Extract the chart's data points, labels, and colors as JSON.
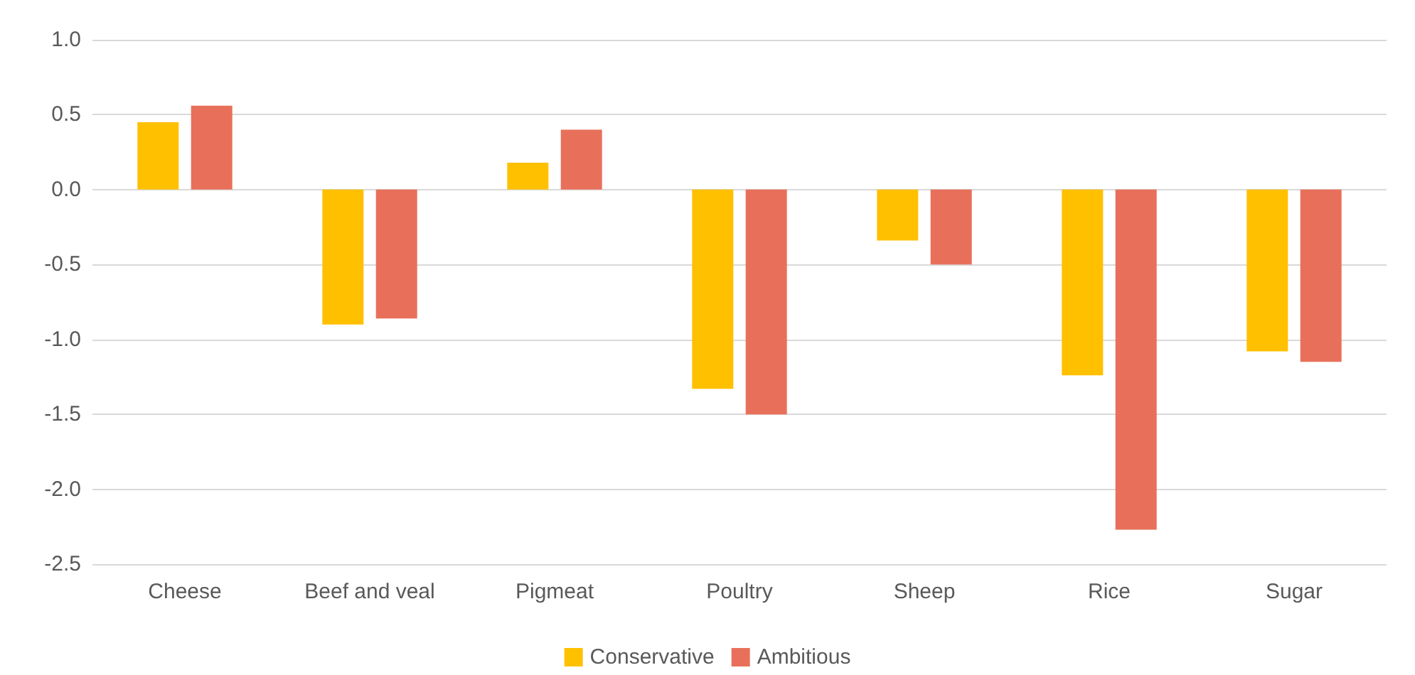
{
  "chart_data": {
    "type": "bar",
    "categories": [
      "Cheese",
      "Beef and veal",
      "Pigmeat",
      "Poultry",
      "Sheep",
      "Rice",
      "Sugar"
    ],
    "series": [
      {
        "name": "Conservative",
        "color": "#ffc000",
        "values": [
          0.45,
          -0.9,
          0.18,
          -1.33,
          -0.34,
          -1.24,
          -1.08
        ]
      },
      {
        "name": "Ambitious",
        "color": "#e8705a",
        "values": [
          0.56,
          -0.86,
          0.4,
          -1.5,
          -0.5,
          -2.27,
          -1.15
        ]
      }
    ],
    "ylim": [
      -2.5,
      1
    ],
    "yticks": [
      {
        "value": -2.5,
        "label": "-2.5"
      },
      {
        "value": -2,
        "label": "-2.0"
      },
      {
        "value": -1.5,
        "label": "-1.5"
      },
      {
        "value": -1,
        "label": "-1.0"
      },
      {
        "value": -0.5,
        "label": "-0.5"
      },
      {
        "value": 0,
        "label": "0.0"
      },
      {
        "value": 0.5,
        "label": "0.5"
      },
      {
        "value": 1,
        "label": "1.0"
      }
    ],
    "grid": "y",
    "legend": "bottom"
  }
}
